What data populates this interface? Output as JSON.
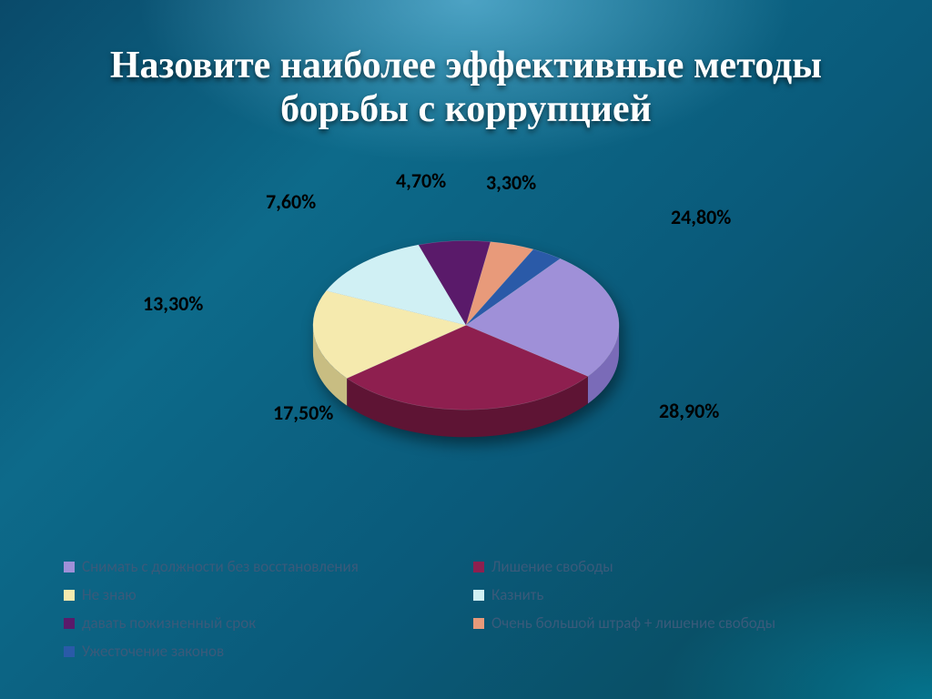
{
  "title_line1": "Назовите наиболее эффективные методы",
  "title_line2": "борьбы с коррупцией",
  "chart": {
    "type": "pie-3d",
    "background_color": "transparent",
    "label_fontsize": 22,
    "label_color": "#000000",
    "legend_fontsize": 17,
    "legend_color": "#3a5a7a",
    "slices": [
      {
        "label": "Снимать с должности без восстановления",
        "value": 24.8,
        "pct": "24,80%",
        "color": "#9f90d8",
        "side": "#7a6bb8"
      },
      {
        "label": "Лишение свободы",
        "value": 28.9,
        "pct": "28,90%",
        "color": "#8e1f4f",
        "side": "#5e1434"
      },
      {
        "label": "Не знаю",
        "value": 17.5,
        "pct": "17,50%",
        "color": "#f5eaae",
        "side": "#c8bd82"
      },
      {
        "label": "Казнить",
        "value": 13.3,
        "pct": "13,30%",
        "color": "#d0f0f4",
        "side": "#9cc8cc"
      },
      {
        "label": "давать пожизненный срок",
        "value": 7.6,
        "pct": "7,60%",
        "color": "#5a1a6a",
        "side": "#3d1048"
      },
      {
        "label": "Очень большой штраф + лишение свободы",
        "value": 4.7,
        "pct": "4,70%",
        "color": "#e89a7a",
        "side": "#b8755a"
      },
      {
        "label": "Ужесточение законов",
        "value": 3.3,
        "pct": "3,30%",
        "color": "#2a5aa8",
        "side": "#1d3e78"
      }
    ]
  }
}
